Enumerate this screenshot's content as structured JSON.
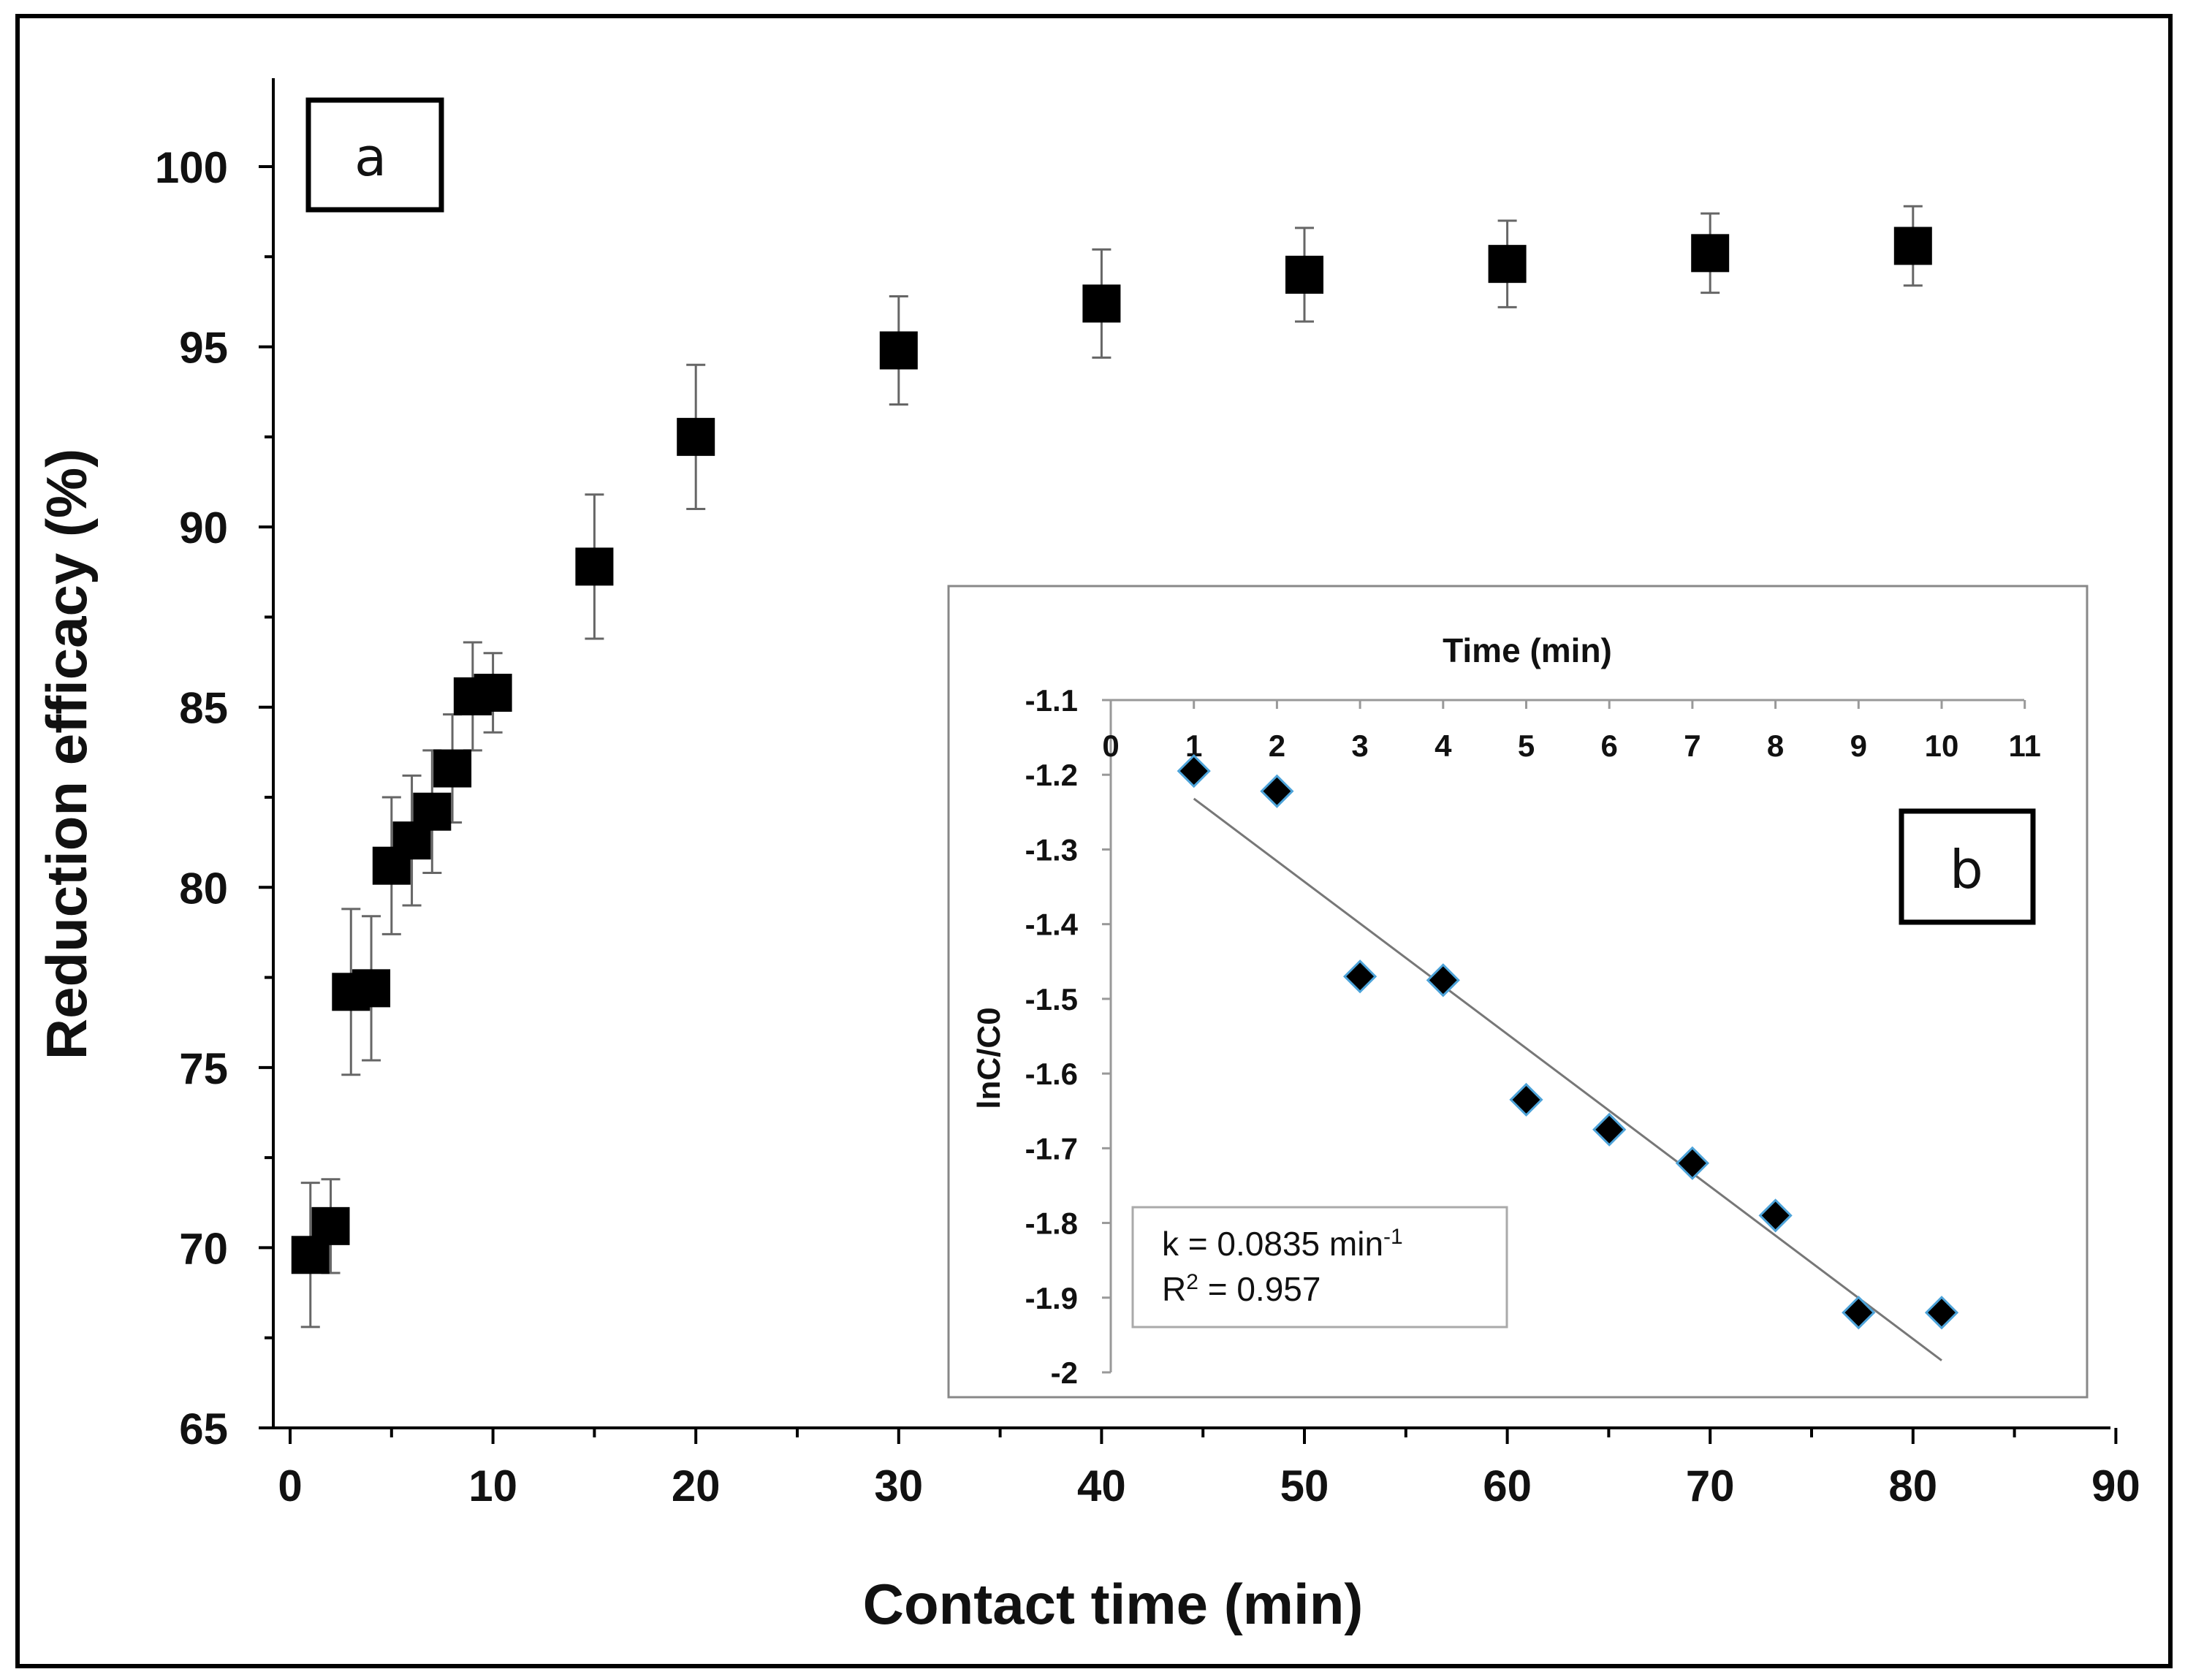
{
  "chart_data": [
    {
      "type": "scatter",
      "panel_label": "a",
      "title": "",
      "xlabel": "Contact time (min)",
      "ylabel": "Reduction efficacy (%)",
      "xlim": [
        0,
        90
      ],
      "ylim": [
        65,
        102
      ],
      "xticks": [
        "0",
        "10",
        "20",
        "30",
        "40",
        "50",
        "60",
        "70",
        "80",
        "90"
      ],
      "yticks": [
        "65",
        "70",
        "75",
        "80",
        "85",
        "90",
        "95",
        "100"
      ],
      "grid": false,
      "marker": "square",
      "series": [
        {
          "name": "Reduction efficacy",
          "x": [
            1,
            2,
            3,
            4,
            5,
            6,
            7,
            8,
            9,
            10,
            15,
            20,
            30,
            40,
            50,
            60,
            70,
            80
          ],
          "y": [
            69.8,
            70.6,
            77.1,
            77.2,
            80.6,
            81.3,
            82.1,
            83.3,
            85.3,
            85.4,
            88.9,
            92.5,
            94.9,
            96.2,
            97.0,
            97.3,
            97.6,
            97.8
          ],
          "err": [
            2.0,
            1.3,
            2.3,
            2.0,
            1.9,
            1.8,
            1.7,
            1.5,
            1.5,
            1.1,
            2.0,
            2.0,
            1.5,
            1.5,
            1.3,
            1.2,
            1.1,
            1.1
          ]
        }
      ]
    },
    {
      "type": "scatter",
      "panel_label": "b",
      "title": "",
      "xlabel": "Time (min)",
      "ylabel": "lnC/C0",
      "xlim": [
        0,
        11
      ],
      "ylim": [
        -2,
        -1.1
      ],
      "xticks": [
        "0",
        "1",
        "2",
        "3",
        "4",
        "5",
        "6",
        "7",
        "8",
        "9",
        "10",
        "11"
      ],
      "yticks": [
        "-1.1",
        "-1.2",
        "-1.3",
        "-1.4",
        "-1.5",
        "-1.6",
        "-1.7",
        "-1.8",
        "-1.9",
        "-2"
      ],
      "x_axis_position": "top",
      "marker": "diamond",
      "series": [
        {
          "name": "lnC/C0",
          "x": [
            1,
            2,
            3,
            4,
            5,
            6,
            7,
            8,
            9,
            10
          ],
          "y": [
            -1.195,
            -1.222,
            -1.47,
            -1.475,
            -1.635,
            -1.675,
            -1.72,
            -1.79,
            -1.92,
            -1.92
          ]
        }
      ],
      "fit_line": {
        "x": [
          1,
          10
        ],
        "y": [
          -1.232,
          -1.984
        ]
      },
      "annotation": {
        "k_text": "k = 0.0835 min",
        "k_superscript": "-1",
        "r2_prefix": "R",
        "r2_superscript": "2",
        "r2_text": " = 0.957"
      }
    }
  ]
}
